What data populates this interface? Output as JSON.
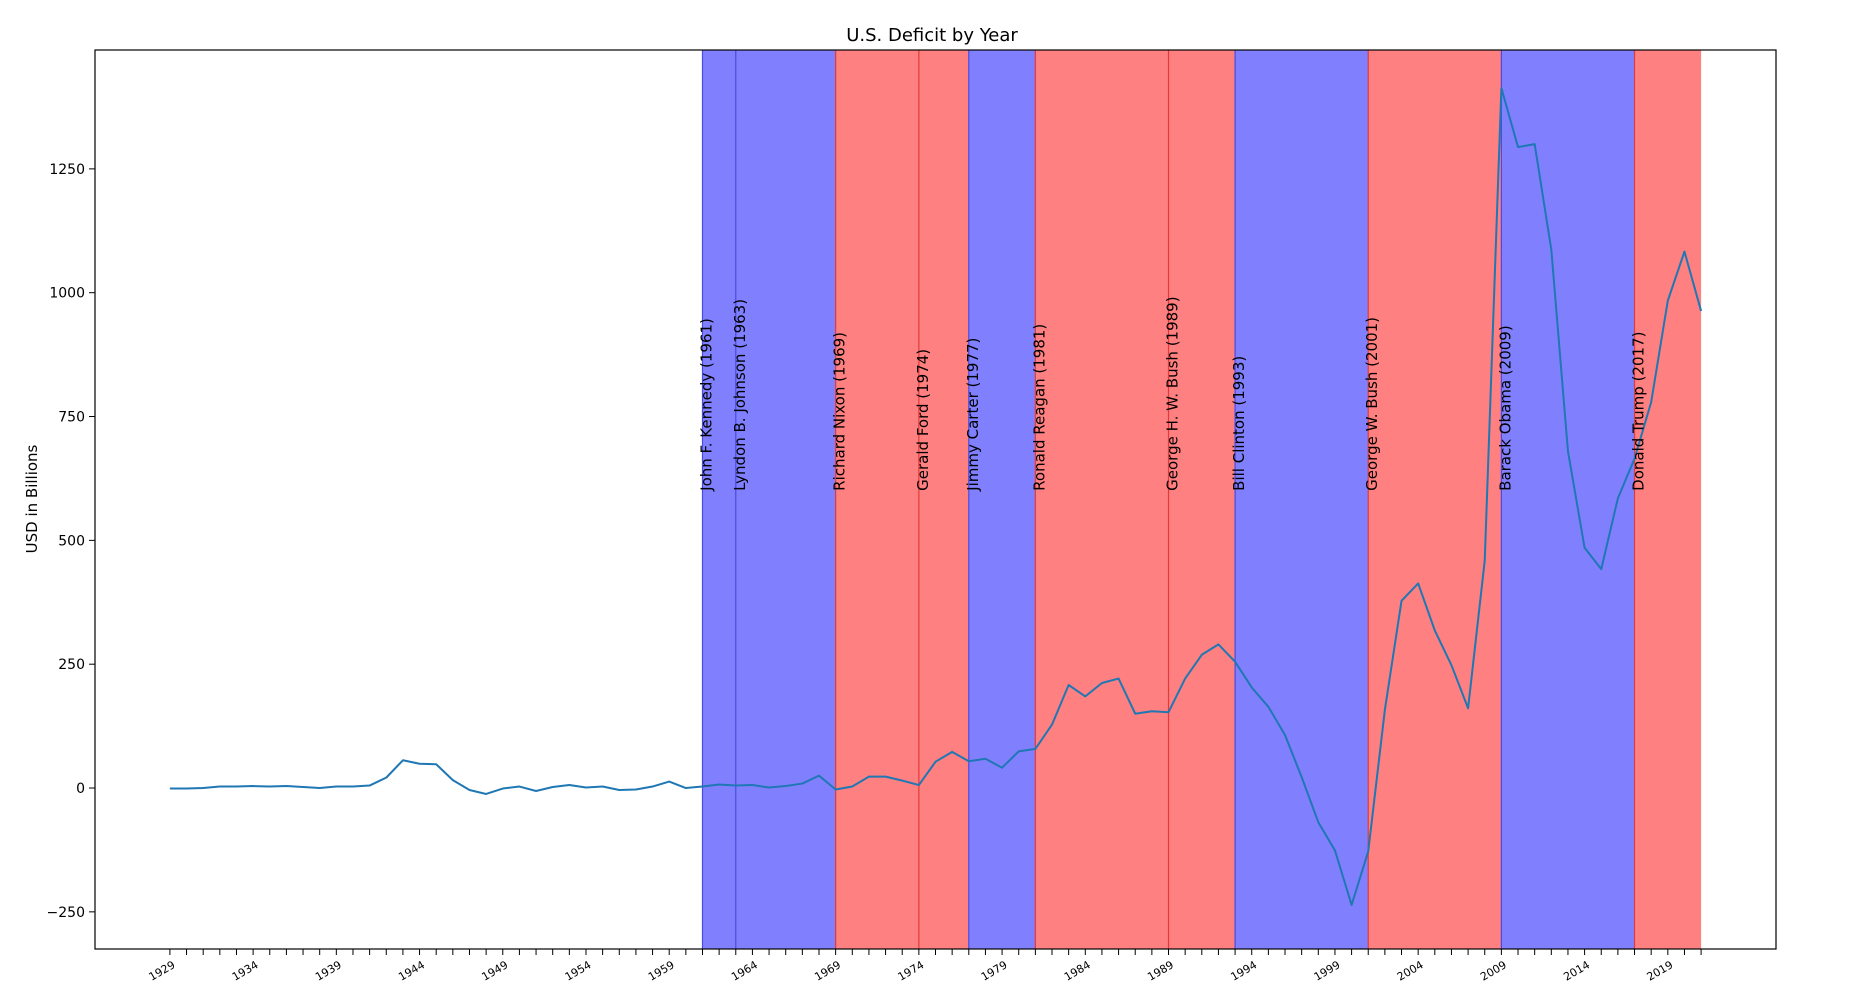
{
  "chart_data": {
    "type": "line",
    "title": "U.S. Deficit by Year",
    "xlabel": "",
    "ylabel": "USD in Billions",
    "xlim": [
      1924.5,
      2025.5
    ],
    "ylim": [
      -325,
      1490
    ],
    "yticks": [
      -250,
      0,
      250,
      500,
      750,
      1000,
      1250
    ],
    "xticks": [
      1929,
      1934,
      1939,
      1944,
      1949,
      1954,
      1959,
      1964,
      1969,
      1974,
      1979,
      1984,
      1989,
      1994,
      1999,
      2004,
      2009,
      2014,
      2019
    ],
    "grid": false,
    "series": [
      {
        "color": "#1f77b4",
        "x": [
          1929,
          1930,
          1931,
          1932,
          1933,
          1934,
          1935,
          1936,
          1937,
          1938,
          1939,
          1940,
          1941,
          1942,
          1943,
          1944,
          1945,
          1946,
          1947,
          1948,
          1949,
          1950,
          1951,
          1952,
          1953,
          1954,
          1955,
          1956,
          1957,
          1958,
          1959,
          1960,
          1961,
          1962,
          1963,
          1964,
          1965,
          1966,
          1967,
          1968,
          1969,
          1970,
          1971,
          1972,
          1973,
          1974,
          1975,
          1976,
          1977,
          1978,
          1979,
          1980,
          1981,
          1982,
          1983,
          1984,
          1985,
          1986,
          1987,
          1988,
          1989,
          1990,
          1991,
          1992,
          1993,
          1994,
          1995,
          1996,
          1997,
          1998,
          1999,
          2000,
          2001,
          2002,
          2003,
          2004,
          2005,
          2006,
          2007,
          2008,
          2009,
          2010,
          2011,
          2012,
          2013,
          2014,
          2015,
          2016,
          2017,
          2018,
          2019,
          2020,
          2021
        ],
        "y": [
          -1,
          -1,
          0,
          3,
          3,
          4,
          3,
          4,
          2,
          0,
          3,
          3,
          5,
          21,
          56,
          49,
          48,
          16,
          -4,
          -12,
          -1,
          3,
          -6,
          2,
          6,
          1,
          3,
          -4,
          -3,
          3,
          13,
          0,
          3,
          7,
          5,
          6,
          1,
          4,
          9,
          25,
          -3,
          3,
          23,
          23,
          15,
          6,
          53,
          73,
          54,
          59,
          41,
          74,
          79,
          128,
          208,
          185,
          212,
          221,
          150,
          155,
          153,
          221,
          269,
          290,
          255,
          203,
          164,
          107,
          22,
          -69,
          -126,
          -236,
          -128,
          158,
          378,
          413,
          318,
          248,
          161,
          459,
          1413,
          1294,
          1300,
          1087,
          680,
          485,
          442,
          585,
          665,
          779,
          984,
          1083,
          963
        ]
      }
    ],
    "presidents": [
      {
        "label": "John F. Kennedy (1961)",
        "start": 1961,
        "end": 1963,
        "party_color": "#8080ff"
      },
      {
        "label": "Lyndon B. Johnson (1963)",
        "start": 1963,
        "end": 1969,
        "party_color": "#8080ff"
      },
      {
        "label": "Richard Nixon (1969)",
        "start": 1969,
        "end": 1974,
        "party_color": "#ff8080"
      },
      {
        "label": "Gerald Ford (1974)",
        "start": 1974,
        "end": 1977,
        "party_color": "#ff8080"
      },
      {
        "label": "Jimmy Carter (1977)",
        "start": 1977,
        "end": 1981,
        "party_color": "#8080ff"
      },
      {
        "label": "Ronald Reagan (1981)",
        "start": 1981,
        "end": 1989,
        "party_color": "#ff8080"
      },
      {
        "label": "George H. W. Bush (1989)",
        "start": 1989,
        "end": 1993,
        "party_color": "#ff8080"
      },
      {
        "label": "Bill Clinton (1993)",
        "start": 1993,
        "end": 2001,
        "party_color": "#8080ff"
      },
      {
        "label": "George W. Bush (2001)",
        "start": 2001,
        "end": 2009,
        "party_color": "#ff8080"
      },
      {
        "label": "Barack Obama (2009)",
        "start": 2009,
        "end": 2017,
        "party_color": "#8080ff"
      },
      {
        "label": "Donald Trump (2017)",
        "start": 2017,
        "end": 2021,
        "party_color": "#ff8080"
      }
    ]
  }
}
